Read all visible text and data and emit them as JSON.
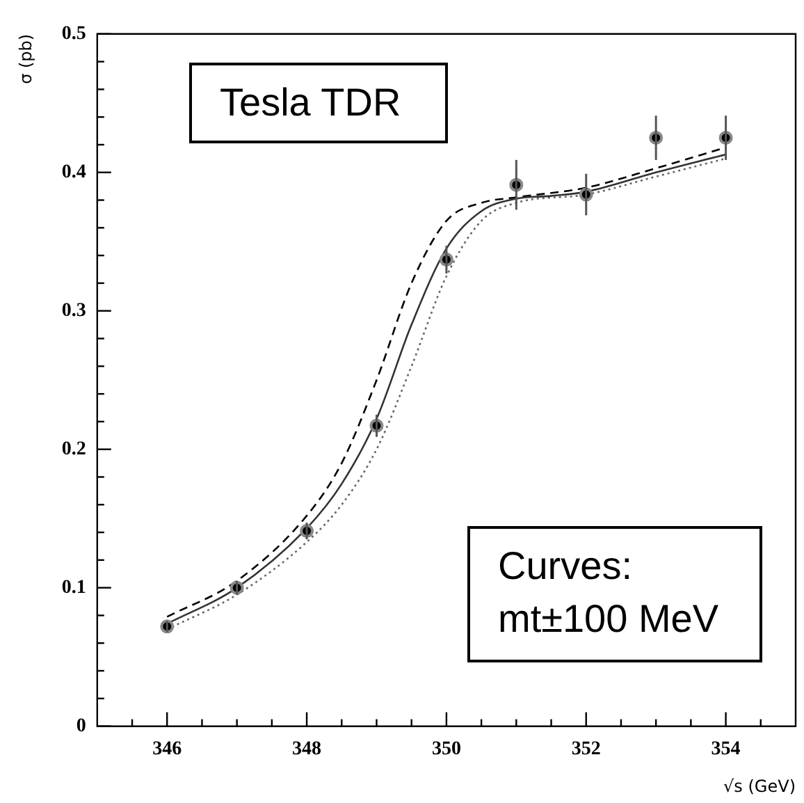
{
  "chart_data": {
    "type": "line",
    "xlabel": "√s (GeV)",
    "ylabel": "σ (pb)",
    "annotations": [
      "Tesla TDR",
      "Curves: mt±100 MeV"
    ],
    "xlim": [
      345,
      355
    ],
    "xticks": [
      {
        "value": 345.5,
        "label": null
      },
      346,
      {
        "value": 346.5,
        "label": null
      },
      {
        "value": 347,
        "label": null
      },
      {
        "value": 347.5,
        "label": null
      },
      348,
      {
        "value": 348.5,
        "label": null
      },
      {
        "value": 349,
        "label": null
      },
      {
        "value": 349.5,
        "label": null
      },
      350,
      {
        "value": 350.5,
        "label": null
      },
      {
        "value": 351,
        "label": null
      },
      {
        "value": 351.5,
        "label": null
      },
      352,
      {
        "value": 352.5,
        "label": null
      },
      {
        "value": 353,
        "label": null
      },
      {
        "value": 353.5,
        "label": null
      },
      354,
      {
        "value": 354.5,
        "label": null
      }
    ],
    "ylim": [
      0,
      0.5
    ],
    "yticks": [
      0,
      {
        "value": 0.02,
        "label": null
      },
      {
        "value": 0.04,
        "label": null
      },
      {
        "value": 0.06,
        "label": null
      },
      {
        "value": 0.08,
        "label": null
      },
      0.1,
      {
        "value": 0.12,
        "label": null
      },
      {
        "value": 0.14,
        "label": null
      },
      {
        "value": 0.16,
        "label": null
      },
      {
        "value": 0.18,
        "label": null
      },
      0.2,
      {
        "value": 0.22,
        "label": null
      },
      {
        "value": 0.24,
        "label": null
      },
      {
        "value": 0.26,
        "label": null
      },
      {
        "value": 0.28,
        "label": null
      },
      0.3,
      {
        "value": 0.32,
        "label": null
      },
      {
        "value": 0.34,
        "label": null
      },
      {
        "value": 0.36,
        "label": null
      },
      {
        "value": 0.38,
        "label": null
      },
      0.4,
      {
        "value": 0.42,
        "label": null
      },
      {
        "value": 0.44,
        "label": null
      },
      {
        "value": 0.46,
        "label": null
      },
      {
        "value": 0.48,
        "label": null
      },
      0.5
    ],
    "grid": false,
    "legend": false,
    "series": [
      {
        "type": "scatter",
        "marker": "circle",
        "color": "#000000",
        "x": [
          346,
          347,
          348,
          349,
          350,
          351,
          352,
          353,
          354
        ],
        "values": [
          0.072,
          0.1,
          0.141,
          0.217,
          0.337,
          0.391,
          0.384,
          0.425,
          0.425
        ],
        "errors": [
          0.004,
          0.005,
          0.006,
          0.008,
          0.01,
          0.018,
          0.015,
          0.016,
          0.016
        ]
      },
      {
        "marker": "none",
        "line_style": "solid",
        "color": "#333333",
        "x": [
          346,
          347,
          348,
          348.5,
          349,
          349.5,
          350,
          350.5,
          351,
          351.5,
          352,
          353,
          354
        ],
        "values": [
          0.074,
          0.1,
          0.143,
          0.175,
          0.222,
          0.29,
          0.345,
          0.372,
          0.381,
          0.383,
          0.386,
          0.4,
          0.413
        ]
      },
      {
        "marker": "none",
        "line_style": "dashed",
        "color": "#000000",
        "x": [
          346,
          347,
          348,
          348.5,
          349,
          349.5,
          350,
          350.5,
          351,
          352,
          353,
          354
        ],
        "values": [
          0.079,
          0.105,
          0.152,
          0.19,
          0.25,
          0.32,
          0.365,
          0.378,
          0.382,
          0.389,
          0.403,
          0.418
        ]
      },
      {
        "marker": "none",
        "line_style": "dotted",
        "color": "#666666",
        "x": [
          346,
          347,
          348,
          348.5,
          349,
          349.5,
          350,
          350.5,
          351,
          352,
          353,
          354
        ],
        "values": [
          0.07,
          0.095,
          0.133,
          0.16,
          0.2,
          0.26,
          0.325,
          0.365,
          0.378,
          0.384,
          0.397,
          0.41
        ]
      }
    ]
  }
}
